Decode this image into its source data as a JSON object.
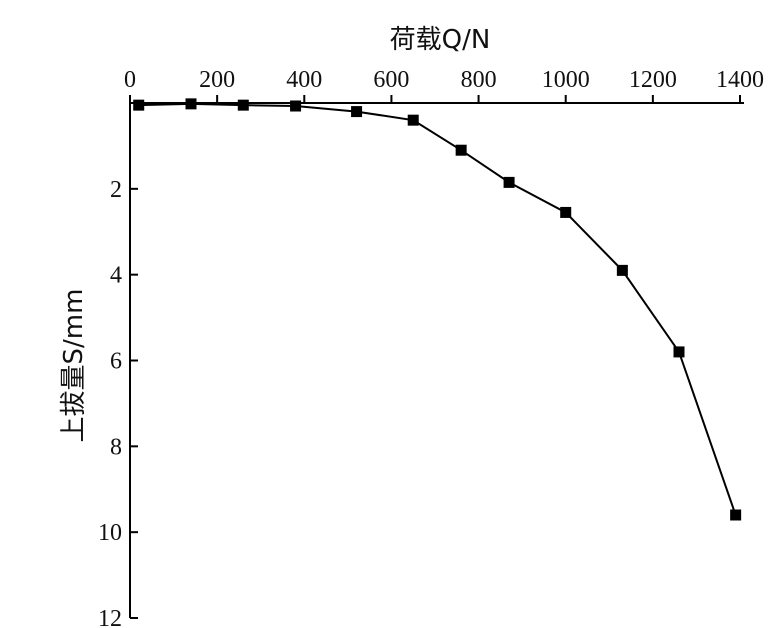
{
  "chart_data": {
    "type": "line",
    "title": "",
    "xlabel": "荷载Q/N",
    "ylabel": "上拔量S/mm",
    "x_axis_position": "top",
    "y_axis_inverted": true,
    "xlim": [
      0,
      1400
    ],
    "ylim": [
      0,
      12
    ],
    "x_ticks": [
      0,
      200,
      400,
      600,
      800,
      1000,
      1200,
      1400
    ],
    "y_ticks": [
      2,
      4,
      6,
      8,
      10,
      12
    ],
    "grid": false,
    "legend": "none",
    "marker": "filled-square",
    "color": "#000000",
    "series": [
      {
        "x": [
          20,
          140,
          260,
          380,
          520,
          650,
          760,
          870,
          1000,
          1130,
          1260,
          1390
        ],
        "y": [
          0.05,
          0.02,
          0.05,
          0.07,
          0.2,
          0.4,
          1.1,
          1.85,
          2.55,
          3.9,
          5.8,
          9.6
        ]
      }
    ]
  }
}
